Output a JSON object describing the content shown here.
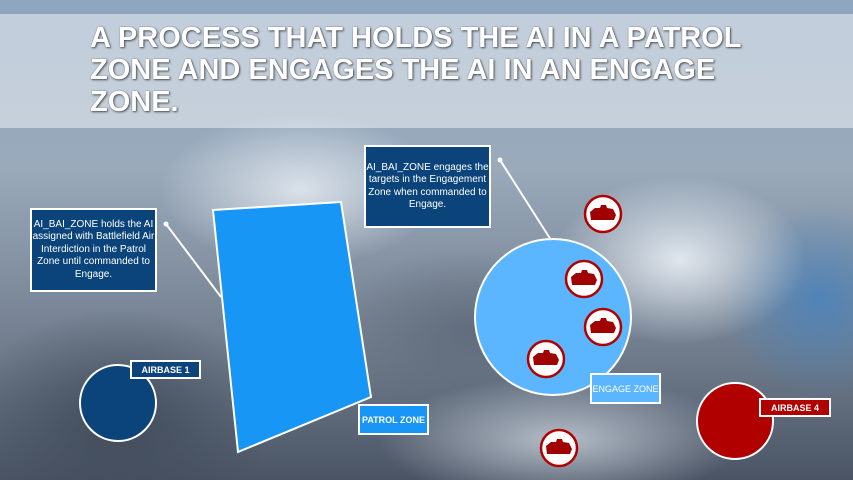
{
  "slide": {
    "title": "A PROCESS THAT HOLDS THE AI IN A PATROL ZONE AND ENGAGES THE AI IN AN ENGAGE ZONE.",
    "patrol_note": "AI_BAI_ZONE holds the AI assigned with Battlefield Air Interdiction in the Patrol Zone until commanded to Engage.",
    "engage_note": "AI_BAI_ZONE engages the targets in the Engagement Zone when commanded to Engage.",
    "patrol_zone_label": "PATROL ZONE",
    "engage_zone_label": "ENGAGE ZONE",
    "airbase1_label": "AIRBASE 1",
    "airbase4_label": "AIRBASE 4",
    "target_icon": "tank-icon",
    "colors": {
      "blue_coalition": "#0a447a",
      "patrol_zone": "#1896f5",
      "engage_zone": "#5cb6ff",
      "red_coalition": "#b00000"
    }
  }
}
